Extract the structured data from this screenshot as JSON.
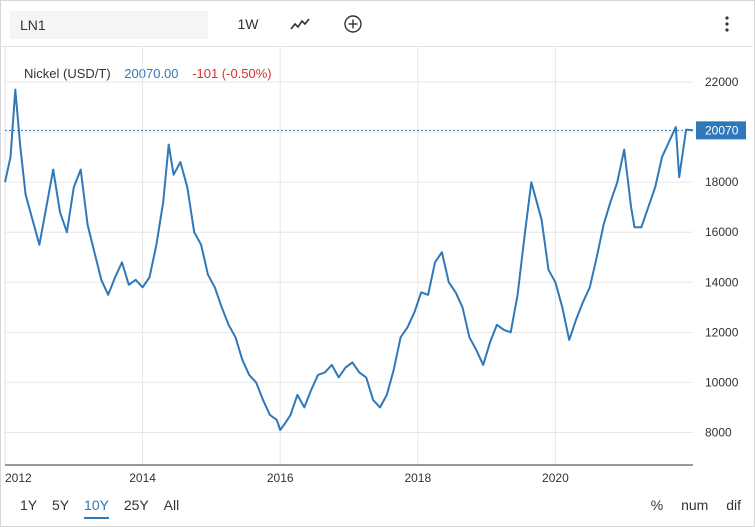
{
  "toolbar": {
    "symbol_value": "LN1",
    "interval_label": "1W",
    "chart_style_icon": "line-chart-icon",
    "add_icon": "plus-circle-icon",
    "menu_icon": "vertical-dots-icon"
  },
  "quote": {
    "name": "Nickel (USD/T)",
    "price": "20070.00",
    "change": "-101 (-0.50%)"
  },
  "colors": {
    "line": "#2f78b9",
    "negative": "#d9302e",
    "grid": "#e6e6e6"
  },
  "ranges": [
    "1Y",
    "5Y",
    "10Y",
    "25Y",
    "All"
  ],
  "active_range": "10Y",
  "modes": [
    "%",
    "num",
    "dif"
  ],
  "chart_data": {
    "type": "line",
    "title": "",
    "xlabel": "",
    "ylabel": "",
    "x_ticks": [
      "2012",
      "2014",
      "2016",
      "2018",
      "2020"
    ],
    "y_ticks": [
      8000,
      10000,
      12000,
      14000,
      16000,
      18000,
      20000,
      22000
    ],
    "y_tick_labels": [
      "8000",
      "10000",
      "12000",
      "14000",
      "16000",
      "18000",
      "",
      "22000"
    ],
    "xlim": [
      2012.0,
      2022.0
    ],
    "ylim": [
      6700,
      23400
    ],
    "last_value": 20070,
    "last_label": "20070",
    "grid": true,
    "series": [
      {
        "x": [
          2012.0,
          2012.08,
          2012.15,
          2012.22,
          2012.3,
          2012.4,
          2012.5,
          2012.6,
          2012.7,
          2012.8,
          2012.9,
          2013.0,
          2013.1,
          2013.2,
          2013.3,
          2013.4,
          2013.5,
          2013.6,
          2013.7,
          2013.8,
          2013.9,
          2014.0,
          2014.1,
          2014.2,
          2014.3,
          2014.38,
          2014.45,
          2014.55,
          2014.65,
          2014.75,
          2014.85,
          2014.95,
          2015.05,
          2015.15,
          2015.25,
          2015.35,
          2015.45,
          2015.55,
          2015.65,
          2015.75,
          2015.85,
          2015.95,
          2016.0,
          2016.08,
          2016.15,
          2016.25,
          2016.35,
          2016.45,
          2016.55,
          2016.65,
          2016.75,
          2016.85,
          2016.95,
          2017.05,
          2017.15,
          2017.25,
          2017.35,
          2017.45,
          2017.55,
          2017.65,
          2017.75,
          2017.85,
          2017.95,
          2018.05,
          2018.15,
          2018.25,
          2018.35,
          2018.45,
          2018.55,
          2018.65,
          2018.75,
          2018.85,
          2018.95,
          2019.05,
          2019.15,
          2019.25,
          2019.35,
          2019.45,
          2019.55,
          2019.65,
          2019.72,
          2019.8,
          2019.9,
          2020.0,
          2020.1,
          2020.2,
          2020.3,
          2020.4,
          2020.5,
          2020.6,
          2020.7,
          2020.8,
          2020.9,
          2021.0,
          2021.1,
          2021.15,
          2021.25,
          2021.35,
          2021.45,
          2021.55,
          2021.65,
          2021.75,
          2021.8,
          2021.9,
          2022.0
        ],
        "values": [
          18000,
          19000,
          21700,
          19500,
          17500,
          16500,
          15500,
          17000,
          18500,
          16800,
          16000,
          17800,
          18500,
          16300,
          15200,
          14100,
          13500,
          14200,
          14800,
          13900,
          14100,
          13800,
          14200,
          15500,
          17200,
          19500,
          18300,
          18800,
          17800,
          16000,
          15500,
          14300,
          13800,
          13000,
          12300,
          11800,
          10900,
          10300,
          10000,
          9300,
          8700,
          8500,
          8100,
          8400,
          8700,
          9500,
          9000,
          9700,
          10300,
          10400,
          10700,
          10200,
          10600,
          10800,
          10400,
          10200,
          9300,
          9000,
          9500,
          10500,
          11800,
          12200,
          12800,
          13600,
          13500,
          14800,
          15200,
          14000,
          13600,
          13000,
          11800,
          11300,
          10700,
          11600,
          12300,
          12100,
          12000,
          13500,
          15800,
          18000,
          17300,
          16500,
          14500,
          14000,
          13000,
          11700,
          12500,
          13200,
          13800,
          15000,
          16300,
          17200,
          18000,
          19300,
          17000,
          16200,
          16200,
          17000,
          17800,
          19000,
          19600,
          20200,
          18200,
          20100,
          20070
        ]
      }
    ]
  }
}
